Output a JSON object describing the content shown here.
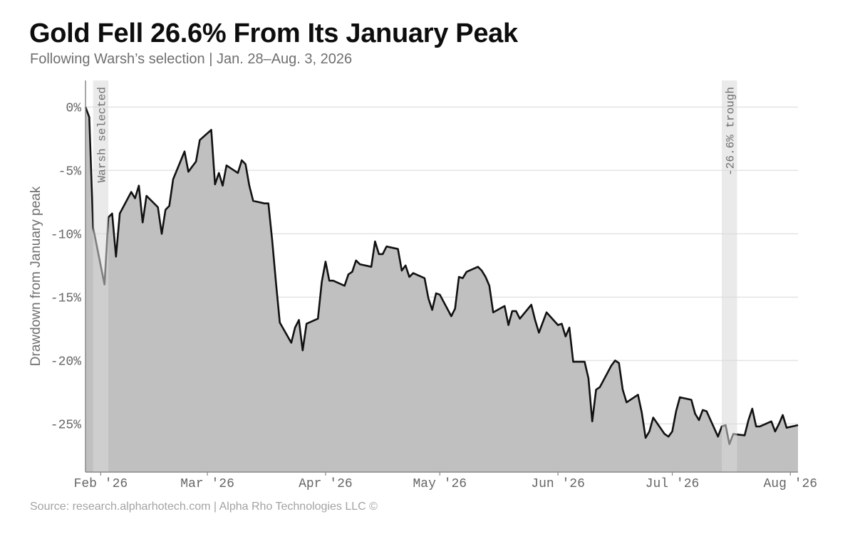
{
  "header": {
    "title": "Gold Fell 26.6% From Its January Peak",
    "subtitle": "Following Warsh’s selection | Jan. 28–Aug. 3, 2026"
  },
  "footer": {
    "source": "Source: research.alpharhotech.com | Alpha Rho Technologies LLC ©"
  },
  "chart_data": {
    "type": "area",
    "title": "Gold Fell 26.6% From Its January Peak",
    "subtitle": "Following Warsh’s selection | Jan. 28–Aug. 3, 2026",
    "xlabel": "",
    "ylabel": "Drawdown from January peak",
    "x_range": [
      "2026-01-28",
      "2026-08-03"
    ],
    "ylim": [
      -28.8,
      2.1
    ],
    "yticks": [
      {
        "value": 0,
        "label": "0%"
      },
      {
        "value": -5,
        "label": "-5%"
      },
      {
        "value": -10,
        "label": "-10%"
      },
      {
        "value": -15,
        "label": "-15%"
      },
      {
        "value": -20,
        "label": "-20%"
      },
      {
        "value": -25,
        "label": "-25%"
      }
    ],
    "xticks": [
      {
        "date": "2026-02-01",
        "label": "Feb '26"
      },
      {
        "date": "2026-03-01",
        "label": "Mar '26"
      },
      {
        "date": "2026-04-01",
        "label": "Apr '26"
      },
      {
        "date": "2026-05-01",
        "label": "May '26"
      },
      {
        "date": "2026-06-01",
        "label": "Jun '26"
      },
      {
        "date": "2026-07-01",
        "label": "Jul '26"
      },
      {
        "date": "2026-08-01",
        "label": "Aug '26"
      }
    ],
    "grid": true,
    "colors": {
      "line": "#111111",
      "area": "#c0c0c0",
      "band": "#d8d8d8",
      "grid": "#e3e3e3"
    },
    "annotations": [
      {
        "label": "Warsh selected",
        "start": "2026-01-30",
        "end": "2026-02-03"
      },
      {
        "label": "-26.6% trough",
        "start": "2026-07-14",
        "end": "2026-07-18"
      }
    ],
    "series": [
      {
        "x": [
          "2026-01-28",
          "2026-01-29",
          "2026-01-30",
          "2026-02-02",
          "2026-02-03",
          "2026-02-04",
          "2026-02-05",
          "2026-02-06",
          "2026-02-09",
          "2026-02-10",
          "2026-02-11",
          "2026-02-12",
          "2026-02-13",
          "2026-02-16",
          "2026-02-17",
          "2026-02-18",
          "2026-02-19",
          "2026-02-20",
          "2026-02-23",
          "2026-02-24",
          "2026-02-25",
          "2026-02-26",
          "2026-02-27",
          "2026-03-02",
          "2026-03-03",
          "2026-03-04",
          "2026-03-05",
          "2026-03-06",
          "2026-03-09",
          "2026-03-10",
          "2026-03-11",
          "2026-03-12",
          "2026-03-13",
          "2026-03-16",
          "2026-03-17",
          "2026-03-18",
          "2026-03-19",
          "2026-03-20",
          "2026-03-23",
          "2026-03-24",
          "2026-03-25",
          "2026-03-26",
          "2026-03-27",
          "2026-03-30",
          "2026-03-31",
          "2026-04-01",
          "2026-04-02",
          "2026-04-03",
          "2026-04-06",
          "2026-04-07",
          "2026-04-08",
          "2026-04-09",
          "2026-04-10",
          "2026-04-13",
          "2026-04-14",
          "2026-04-15",
          "2026-04-16",
          "2026-04-17",
          "2026-04-20",
          "2026-04-21",
          "2026-04-22",
          "2026-04-23",
          "2026-04-24",
          "2026-04-27",
          "2026-04-28",
          "2026-04-29",
          "2026-04-30",
          "2026-05-01",
          "2026-05-04",
          "2026-05-05",
          "2026-05-06",
          "2026-05-07",
          "2026-05-08",
          "2026-05-11",
          "2026-05-12",
          "2026-05-13",
          "2026-05-14",
          "2026-05-15",
          "2026-05-18",
          "2026-05-19",
          "2026-05-20",
          "2026-05-21",
          "2026-05-22",
          "2026-05-25",
          "2026-05-26",
          "2026-05-27",
          "2026-05-28",
          "2026-05-29",
          "2026-06-01",
          "2026-06-02",
          "2026-06-03",
          "2026-06-04",
          "2026-06-05",
          "2026-06-08",
          "2026-06-09",
          "2026-06-10",
          "2026-06-11",
          "2026-06-12",
          "2026-06-15",
          "2026-06-16",
          "2026-06-17",
          "2026-06-18",
          "2026-06-19",
          "2026-06-22",
          "2026-06-23",
          "2026-06-24",
          "2026-06-25",
          "2026-06-26",
          "2026-06-29",
          "2026-06-30",
          "2026-07-01",
          "2026-07-02",
          "2026-07-03",
          "2026-07-06",
          "2026-07-07",
          "2026-07-08",
          "2026-07-09",
          "2026-07-10",
          "2026-07-13",
          "2026-07-14",
          "2026-07-15",
          "2026-07-16",
          "2026-07-17",
          "2026-07-20",
          "2026-07-21",
          "2026-07-22",
          "2026-07-23",
          "2026-07-24",
          "2026-07-27",
          "2026-07-28",
          "2026-07-29",
          "2026-07-30",
          "2026-07-31",
          "2026-08-03"
        ],
        "values": [
          0.0,
          -0.8,
          -9.5,
          -14.0,
          -8.7,
          -8.4,
          -11.8,
          -8.4,
          -6.7,
          -7.2,
          -6.2,
          -9.1,
          -7.0,
          -7.9,
          -10.0,
          -8.1,
          -7.8,
          -5.7,
          -3.5,
          -5.1,
          -4.7,
          -4.3,
          -2.6,
          -1.8,
          -6.1,
          -5.2,
          -6.2,
          -4.6,
          -5.2,
          -4.2,
          -4.5,
          -6.2,
          -7.4,
          -7.6,
          -7.6,
          -10.5,
          -13.9,
          -17.0,
          -18.6,
          -17.4,
          -16.8,
          -19.2,
          -17.1,
          -16.7,
          -13.8,
          -12.2,
          -13.7,
          -13.7,
          -14.1,
          -13.2,
          -13.0,
          -12.1,
          -12.4,
          -12.6,
          -10.6,
          -11.6,
          -11.6,
          -11.0,
          -11.2,
          -12.9,
          -12.5,
          -13.4,
          -13.1,
          -13.5,
          -15.1,
          -16.0,
          -14.7,
          -14.8,
          -16.5,
          -15.9,
          -13.4,
          -13.5,
          -13.0,
          -12.6,
          -12.9,
          -13.4,
          -14.1,
          -16.2,
          -15.7,
          -17.2,
          -16.1,
          -16.1,
          -16.7,
          -15.6,
          -16.8,
          -17.8,
          -17.0,
          -16.2,
          -17.2,
          -17.1,
          -18.1,
          -17.4,
          -20.1,
          -20.1,
          -21.4,
          -24.8,
          -22.3,
          -22.1,
          -20.4,
          -20.0,
          -20.2,
          -22.3,
          -23.3,
          -22.7,
          -24.1,
          -26.1,
          -25.6,
          -24.5,
          -25.8,
          -26.0,
          -25.6,
          -24.0,
          -22.9,
          -23.1,
          -24.2,
          -24.7,
          -23.9,
          -24.0,
          -26.0,
          -25.2,
          -25.1,
          -26.6,
          -25.8,
          -25.9,
          -24.7,
          -23.8,
          -25.2,
          -25.2,
          -24.8,
          -25.6,
          -25.0,
          -24.3,
          -25.3,
          -25.1
        ]
      }
    ]
  }
}
